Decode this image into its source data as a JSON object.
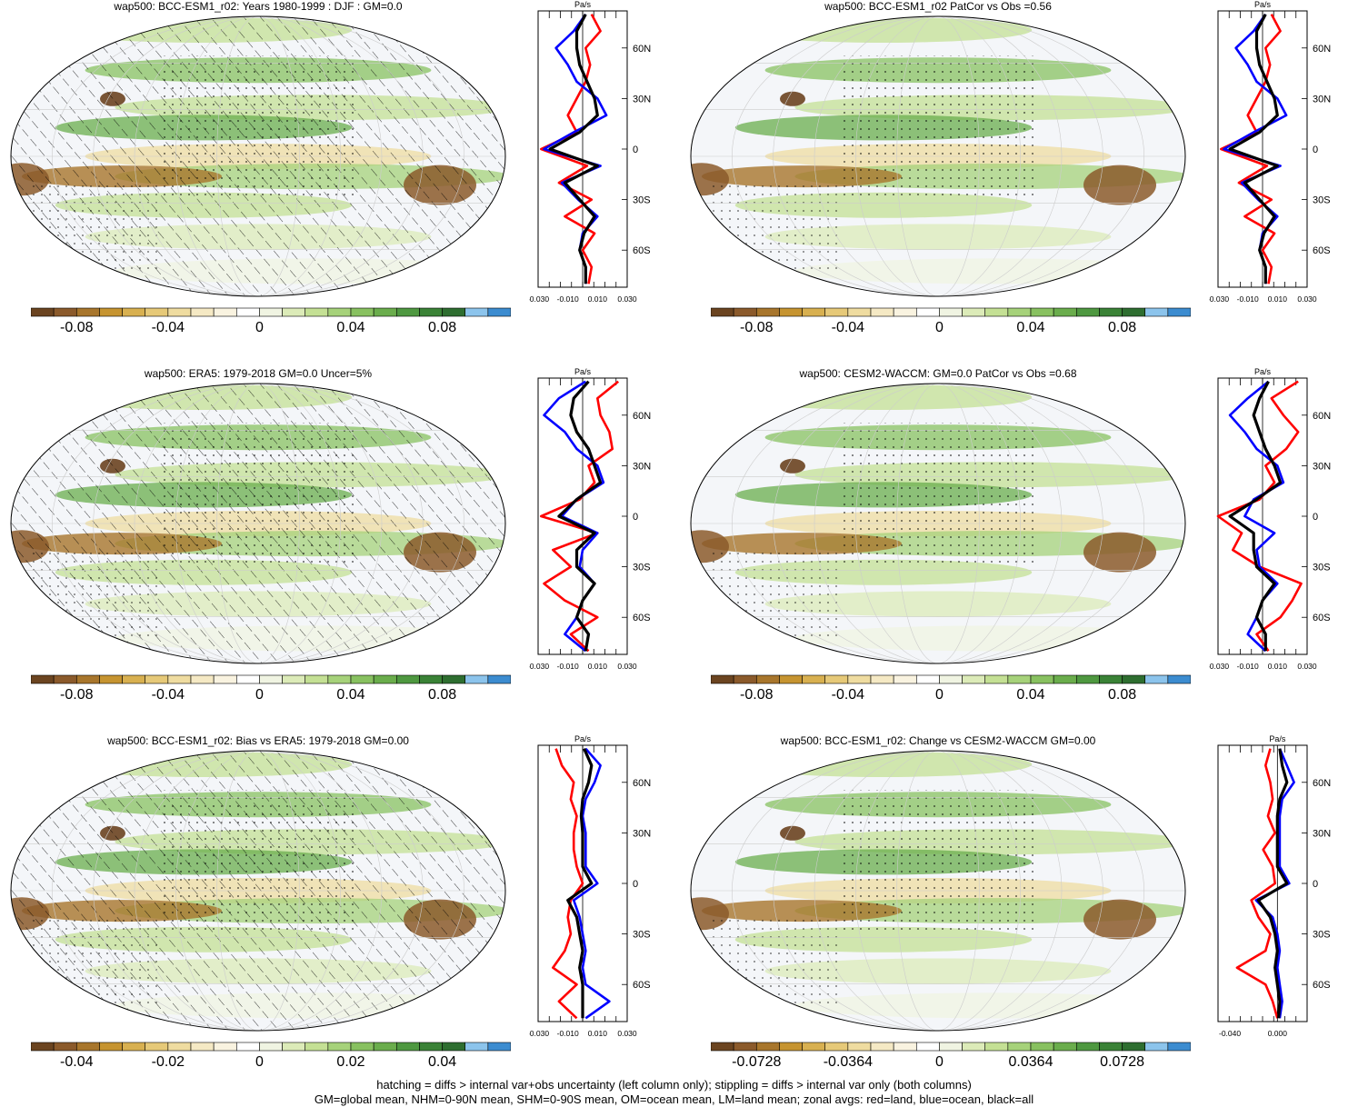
{
  "footnotes": {
    "line1": "hatching = diffs > internal var+obs uncertainty (left column only); stippling = diffs > internal var only (both columns)",
    "line2": "GM=global mean, NHM=0-90N mean, SHM=0-90S mean, OM=ocean mean, LM=land mean; zonal avgs: red=land, blue=ocean, black=all"
  },
  "colors": {
    "land": "#ff0000",
    "ocean": "#0000ff",
    "all": "#000000",
    "palette": [
      "#6b4420",
      "#8b5a2b",
      "#a8762c",
      "#c69430",
      "#d8b050",
      "#e6c978",
      "#efdca0",
      "#f5e9c4",
      "#f9f3e0",
      "#ffffff",
      "#f0f4e2",
      "#dcebb8",
      "#c4e094",
      "#a6d27a",
      "#88c160",
      "#6aad4c",
      "#4e9840",
      "#3a8236",
      "#2e6e30",
      "#8cc4ec",
      "#3c8cd0"
    ]
  },
  "chart_data": [
    {
      "type": "heatmap",
      "id": "p1",
      "title": "wap500: BCC-ESM1_r02: Years 1980-1999 : DJF : GM=0.0",
      "hatching": true,
      "colorbar": {
        "ticks": [
          "-0.08",
          "-0.04",
          "0",
          "0.04",
          "0.08"
        ]
      },
      "zonal": {
        "unit": "Pa/s",
        "xticks": [
          "-0.030",
          "-0.010",
          "0.010",
          "0.030"
        ],
        "xlim": [
          -0.03,
          0.03
        ],
        "lat_labels": [
          "60N",
          "30N",
          "0",
          "30S",
          "60S"
        ],
        "lat": [
          80,
          70,
          60,
          50,
          40,
          30,
          20,
          10,
          0,
          -10,
          -20,
          -30,
          -40,
          -50,
          -60,
          -70,
          -80
        ],
        "land": [
          0.006,
          0.012,
          0.002,
          0.005,
          0.002,
          -0.004,
          -0.01,
          -0.004,
          -0.028,
          0.003,
          -0.016,
          0.006,
          -0.012,
          0.008,
          0.0,
          0.006,
          0.004
        ],
        "ocean": [
          0.002,
          -0.006,
          -0.018,
          -0.01,
          -0.004,
          0.01,
          0.016,
          -0.006,
          -0.026,
          0.012,
          -0.014,
          -0.003,
          0.01,
          0.0,
          -0.002,
          0.002,
          0.002
        ],
        "all": [
          0.002,
          -0.004,
          -0.004,
          -0.002,
          0.003,
          0.008,
          0.01,
          -0.002,
          -0.022,
          0.01,
          -0.012,
          -0.002,
          0.008,
          0.001,
          -0.002,
          0.002,
          0.002
        ]
      }
    },
    {
      "type": "heatmap",
      "id": "p2",
      "title": "wap500: BCC-ESM1_r02 PatCor vs Obs =0.56",
      "hatching": false,
      "colorbar": {
        "ticks": [
          "-0.08",
          "-0.04",
          "0",
          "0.04",
          "0.08"
        ]
      },
      "zonal": {
        "unit": "Pa/s",
        "xticks": [
          "-0.030",
          "-0.010",
          "0.010",
          "0.030"
        ],
        "xlim": [
          -0.03,
          0.03
        ],
        "lat_labels": [
          "60N",
          "30N",
          "0",
          "30S",
          "60S"
        ],
        "lat": [
          80,
          70,
          60,
          50,
          40,
          30,
          20,
          10,
          0,
          -10,
          -20,
          -30,
          -40,
          -50,
          -60,
          -70,
          -80
        ],
        "land": [
          0.006,
          0.012,
          0.002,
          0.005,
          0.002,
          -0.004,
          -0.01,
          -0.004,
          -0.028,
          0.003,
          -0.016,
          0.006,
          -0.012,
          0.008,
          0.0,
          0.006,
          0.004
        ],
        "ocean": [
          0.002,
          -0.006,
          -0.018,
          -0.01,
          -0.004,
          0.01,
          0.016,
          -0.006,
          -0.026,
          0.012,
          -0.014,
          -0.003,
          0.01,
          0.0,
          -0.002,
          0.002,
          0.002
        ],
        "all": [
          0.002,
          -0.004,
          -0.004,
          -0.002,
          0.003,
          0.008,
          0.01,
          -0.002,
          -0.022,
          0.01,
          -0.012,
          -0.002,
          0.008,
          0.001,
          -0.002,
          0.002,
          0.002
        ]
      }
    },
    {
      "type": "heatmap",
      "id": "p3",
      "title": "wap500: ERA5: 1979-2018 GM=0.0 Uncer=5%",
      "hatching": true,
      "colorbar": {
        "ticks": [
          "-0.08",
          "-0.04",
          "0",
          "0.04",
          "0.08"
        ]
      },
      "zonal": {
        "unit": "Pa/s",
        "xticks": [
          "-0.030",
          "-0.010",
          "0.010",
          "0.030"
        ],
        "xlim": [
          -0.03,
          0.03
        ],
        "lat_labels": [
          "60N",
          "30N",
          "0",
          "30S",
          "60S"
        ],
        "lat": [
          80,
          70,
          60,
          50,
          40,
          30,
          20,
          10,
          0,
          -10,
          -20,
          -30,
          -40,
          -50,
          -60,
          -70,
          -80
        ],
        "land": [
          0.024,
          0.01,
          0.012,
          0.018,
          0.02,
          0.004,
          0.008,
          -0.002,
          -0.028,
          0.01,
          -0.02,
          -0.008,
          -0.026,
          -0.012,
          0.01,
          -0.008,
          0.004
        ],
        "ocean": [
          0.002,
          -0.016,
          -0.026,
          -0.012,
          -0.004,
          0.01,
          0.014,
          -0.004,
          -0.014,
          0.01,
          0.0,
          -0.002,
          0.008,
          0.0,
          -0.004,
          -0.012,
          0.002
        ],
        "all": [
          0.004,
          -0.006,
          -0.008,
          -0.004,
          0.004,
          0.008,
          0.012,
          -0.004,
          -0.016,
          0.008,
          -0.004,
          -0.004,
          0.008,
          0.0,
          -0.004,
          0.004,
          0.002
        ]
      }
    },
    {
      "type": "heatmap",
      "id": "p4",
      "title": "wap500: CESM2-WACCM: GM=0.0 PatCor vs Obs =0.68",
      "hatching": false,
      "colorbar": {
        "ticks": [
          "-0.08",
          "-0.04",
          "0",
          "0.04",
          "0.08"
        ]
      },
      "zonal": {
        "unit": "Pa/s",
        "xticks": [
          "-0.030",
          "-0.010",
          "0.010",
          "0.030"
        ],
        "xlim": [
          -0.03,
          0.03
        ],
        "lat_labels": [
          "60N",
          "30N",
          "0",
          "30S",
          "60S"
        ],
        "lat": [
          80,
          70,
          60,
          50,
          40,
          30,
          20,
          10,
          0,
          -10,
          -20,
          -30,
          -40,
          -50,
          -60,
          -70,
          -80
        ],
        "land": [
          0.024,
          0.006,
          0.014,
          0.024,
          0.016,
          0.002,
          0.008,
          -0.002,
          -0.03,
          -0.014,
          -0.02,
          -0.002,
          0.026,
          0.02,
          0.012,
          -0.004,
          0.004
        ],
        "ocean": [
          0.004,
          -0.01,
          -0.022,
          -0.012,
          -0.004,
          0.01,
          0.014,
          -0.006,
          -0.012,
          0.008,
          -0.004,
          -0.002,
          0.01,
          0.0,
          -0.004,
          -0.01,
          0.002
        ],
        "all": [
          0.004,
          -0.002,
          -0.006,
          -0.002,
          0.002,
          0.008,
          0.012,
          -0.004,
          -0.022,
          -0.006,
          -0.006,
          -0.004,
          0.008,
          0.0,
          -0.004,
          0.002,
          0.002
        ]
      }
    },
    {
      "type": "heatmap",
      "id": "p5",
      "title": "wap500: BCC-ESM1_r02: Bias vs ERA5: 1979-2018 GM=0.00",
      "hatching": true,
      "colorbar": {
        "ticks": [
          "-0.04",
          "-0.02",
          "0",
          "0.02",
          "0.04"
        ]
      },
      "zonal": {
        "unit": "Pa/s",
        "xticks": [
          "-0.030",
          "-0.010",
          "0.010",
          "0.030"
        ],
        "xlim": [
          -0.03,
          0.03
        ],
        "lat_labels": [
          "60N",
          "30N",
          "0",
          "30S",
          "60S"
        ],
        "lat": [
          80,
          70,
          60,
          50,
          40,
          30,
          20,
          10,
          0,
          -10,
          -20,
          -30,
          -40,
          -50,
          -60,
          -70,
          -80
        ],
        "land": [
          -0.018,
          -0.014,
          -0.006,
          -0.008,
          -0.004,
          -0.006,
          -0.006,
          -0.004,
          0.0,
          -0.008,
          -0.01,
          -0.008,
          -0.012,
          -0.02,
          -0.004,
          -0.016,
          -0.004
        ],
        "ocean": [
          0.002,
          0.012,
          0.008,
          0.002,
          0.0,
          0.002,
          0.002,
          0.002,
          0.01,
          -0.006,
          -0.002,
          0.0,
          0.002,
          0.0,
          0.002,
          0.018,
          0.002
        ],
        "all": [
          0.001,
          0.006,
          0.004,
          0.0,
          -0.001,
          0.0,
          0.0,
          0.0,
          0.006,
          -0.01,
          -0.004,
          -0.002,
          0.0,
          -0.002,
          0.0,
          0.0,
          0.0
        ]
      }
    },
    {
      "type": "heatmap",
      "id": "p6",
      "title": "wap500: BCC-ESM1_r02: Change vs CESM2-WACCM GM=0.00",
      "hatching": false,
      "colorbar": {
        "ticks": [
          "-0.0728",
          "-0.0364",
          "0",
          "0.0364",
          "0.0728"
        ]
      },
      "zonal": {
        "unit": "Pa/s",
        "xticks": [
          "-0.040",
          "0.000"
        ],
        "xlim": [
          -0.05,
          0.025
        ],
        "lat_labels": [
          "60N",
          "30N",
          "0",
          "30S",
          "60S"
        ],
        "lat": [
          80,
          70,
          60,
          50,
          40,
          30,
          20,
          10,
          0,
          -10,
          -20,
          -30,
          -40,
          -50,
          -60,
          -70,
          -80
        ],
        "land": [
          -0.006,
          -0.01,
          -0.006,
          -0.004,
          -0.008,
          -0.002,
          -0.012,
          -0.004,
          -0.002,
          -0.022,
          -0.016,
          -0.006,
          -0.01,
          -0.034,
          -0.01,
          -0.004,
          0.0
        ],
        "ocean": [
          0.002,
          0.008,
          0.014,
          0.004,
          0.002,
          0.002,
          0.002,
          0.002,
          0.01,
          -0.018,
          -0.004,
          0.0,
          0.002,
          0.0,
          0.002,
          0.004,
          0.002
        ],
        "all": [
          0.002,
          0.004,
          0.008,
          0.002,
          0.0,
          0.0,
          0.0,
          0.0,
          0.008,
          -0.016,
          -0.006,
          -0.002,
          0.0,
          -0.002,
          0.0,
          0.002,
          0.001
        ]
      }
    }
  ]
}
